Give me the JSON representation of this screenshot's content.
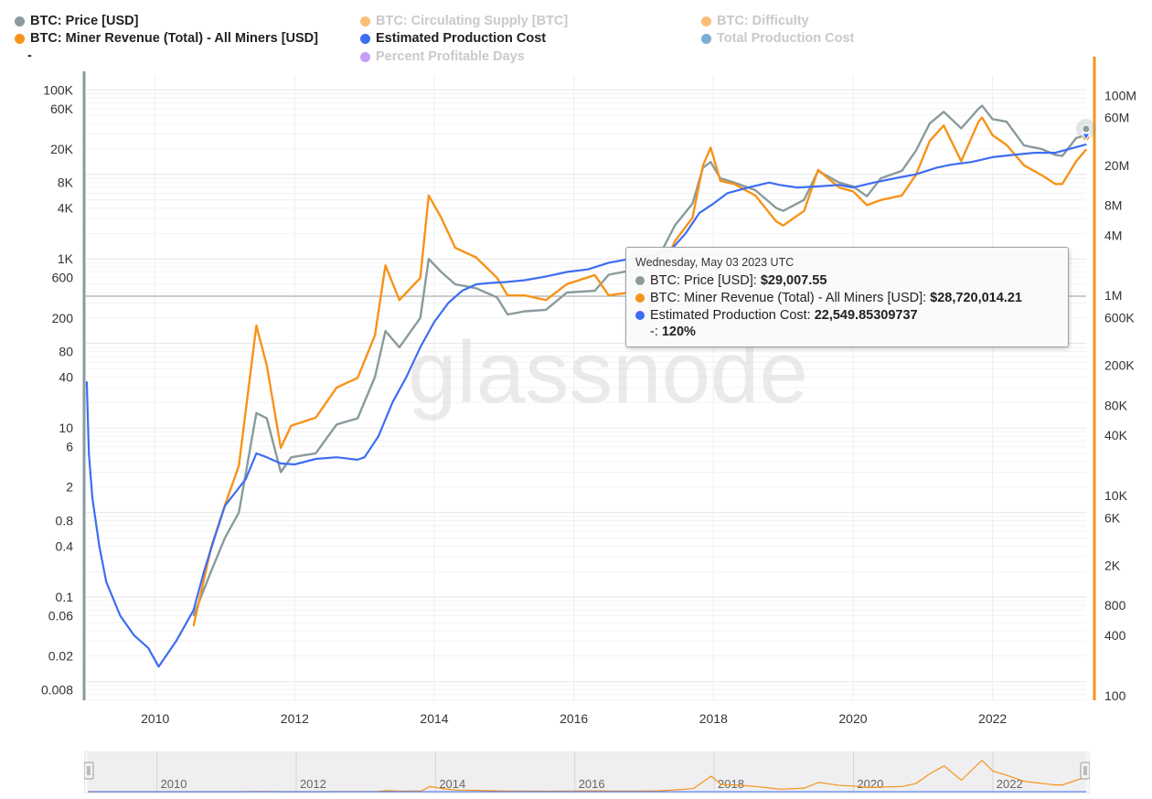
{
  "watermark": "glassnode",
  "legend": [
    {
      "label": "BTC: Price [USD]",
      "color": "#8a9a9d",
      "active": true
    },
    {
      "label": "BTC: Miner Revenue (Total) - All Miners [USD]",
      "color": "#f7931a",
      "active": true
    },
    {
      "label": "-",
      "color": "",
      "active": true
    },
    {
      "label": "BTC: Circulating Supply [BTC]",
      "color": "#f7931a",
      "active": false
    },
    {
      "label": "Estimated Production Cost",
      "color": "#3d6df2",
      "active": true
    },
    {
      "label": "Percent Profitable Days",
      "color": "#a259f0",
      "active": false
    },
    {
      "label": "BTC: Difficulty",
      "color": "#f7931a",
      "active": false
    },
    {
      "label": "Total Production Cost",
      "color": "#1f77b4",
      "active": false
    }
  ],
  "tooltip": {
    "date": "Wednesday, May 03 2023 UTC",
    "rows": [
      {
        "name": "BTC: Price [USD]:",
        "value": "$29,007.55",
        "color": "#8a9a9d"
      },
      {
        "name": "BTC: Miner Revenue (Total) - All Miners [USD]:",
        "value": "$28,720,014.21",
        "color": "#f7931a"
      },
      {
        "name": "Estimated Production Cost:",
        "value": "22,549.85309737",
        "color": "#3d6df2"
      },
      {
        "name": "-:",
        "value": "120%",
        "color": ""
      }
    ]
  },
  "chart_data": {
    "type": "line",
    "x_axis": {
      "type": "date",
      "range": [
        "2009-01-03",
        "2023-05-03"
      ],
      "ticks": [
        "2010",
        "2012",
        "2014",
        "2016",
        "2018",
        "2020",
        "2022"
      ]
    },
    "y_left": {
      "scale": "log",
      "range": [
        0.006,
        150000
      ],
      "ticks": [
        "100K",
        "60K",
        "20K",
        "8K",
        "4K",
        "1K",
        "600",
        "200",
        "80",
        "40",
        "10",
        "6",
        "2",
        "0.8",
        "0.4",
        "0.1",
        "0.06",
        "0.02",
        "0.008"
      ]
    },
    "y_right": {
      "scale": "log",
      "range": [
        90,
        160000000
      ],
      "ticks": [
        "100M",
        "60M",
        "20M",
        "8M",
        "4M",
        "1M",
        "600K",
        "200K",
        "80K",
        "40K",
        "10K",
        "6K",
        "2K",
        "800",
        "400",
        "100"
      ]
    },
    "navigator_ticks": [
      "2010",
      "2012",
      "2014",
      "2016",
      "2018",
      "2020",
      "2022"
    ],
    "grid": true,
    "series": [
      {
        "name": "BTC: Price [USD]",
        "axis": "left",
        "color": "#8a9a9d",
        "x": [
          2010.55,
          2010.8,
          2011.0,
          2011.2,
          2011.45,
          2011.6,
          2011.8,
          2011.95,
          2012.3,
          2012.6,
          2012.9,
          2013.15,
          2013.3,
          2013.5,
          2013.8,
          2013.92,
          2014.1,
          2014.3,
          2014.6,
          2014.9,
          2015.05,
          2015.3,
          2015.6,
          2015.9,
          2016.3,
          2016.5,
          2016.9,
          2017.2,
          2017.45,
          2017.7,
          2017.85,
          2017.96,
          2018.1,
          2018.3,
          2018.6,
          2018.9,
          2019.0,
          2019.3,
          2019.5,
          2019.8,
          2020.0,
          2020.2,
          2020.4,
          2020.7,
          2020.9,
          2021.1,
          2021.3,
          2021.55,
          2021.8,
          2021.85,
          2022.0,
          2022.2,
          2022.45,
          2022.7,
          2022.9,
          2023.0,
          2023.2,
          2023.34
        ],
        "y": [
          0.06,
          0.2,
          0.5,
          1.0,
          15,
          13,
          3,
          4.5,
          5,
          11,
          13,
          40,
          140,
          90,
          200,
          1000,
          700,
          500,
          450,
          350,
          220,
          240,
          250,
          400,
          420,
          650,
          750,
          1000,
          2500,
          4500,
          12000,
          14000,
          9000,
          8000,
          6500,
          4000,
          3700,
          5000,
          11000,
          8000,
          7200,
          5500,
          9000,
          11000,
          19000,
          40000,
          55000,
          35000,
          60000,
          65000,
          45000,
          42000,
          22000,
          20000,
          17000,
          16500,
          27000,
          29007.55
        ]
      },
      {
        "name": "BTC: Miner Revenue (Total) - All Miners [USD]",
        "axis": "right",
        "color": "#f7931a",
        "x": [
          2010.55,
          2010.8,
          2011.0,
          2011.2,
          2011.45,
          2011.6,
          2011.8,
          2011.95,
          2012.3,
          2012.6,
          2012.9,
          2013.15,
          2013.3,
          2013.5,
          2013.8,
          2013.92,
          2014.1,
          2014.3,
          2014.6,
          2014.9,
          2015.05,
          2015.3,
          2015.6,
          2015.9,
          2016.3,
          2016.5,
          2016.9,
          2017.2,
          2017.45,
          2017.7,
          2017.85,
          2017.96,
          2018.1,
          2018.3,
          2018.6,
          2018.9,
          2019.0,
          2019.3,
          2019.5,
          2019.8,
          2020.0,
          2020.2,
          2020.4,
          2020.7,
          2020.9,
          2021.1,
          2021.3,
          2021.55,
          2021.8,
          2021.85,
          2022.0,
          2022.2,
          2022.45,
          2022.7,
          2022.9,
          2023.0,
          2023.2,
          2023.34
        ],
        "y": [
          500,
          3000,
          8000,
          20000,
          500000,
          200000,
          30000,
          50000,
          60000,
          120000,
          150000,
          400000,
          2000000,
          900000,
          1500000,
          10000000,
          6000000,
          3000000,
          2400000,
          1500000,
          1000000,
          1000000,
          900000,
          1300000,
          1600000,
          1000000,
          1100000,
          1500000,
          3500000,
          6000000,
          20000000,
          30000000,
          14000000,
          13000000,
          10000000,
          5500000,
          5000000,
          7000000,
          18000000,
          12000000,
          11000000,
          8000000,
          9000000,
          10000000,
          16000000,
          35000000,
          50000000,
          22000000,
          55000000,
          60000000,
          40000000,
          32000000,
          20000000,
          16000000,
          13000000,
          13000000,
          22000000,
          28720014.21
        ]
      },
      {
        "name": "Estimated Production Cost",
        "axis": "left",
        "color": "#3d6df2",
        "x": [
          2009.02,
          2009.05,
          2009.1,
          2009.2,
          2009.3,
          2009.5,
          2009.7,
          2009.9,
          2010.05,
          2010.3,
          2010.55,
          2010.7,
          2010.85,
          2011.0,
          2011.3,
          2011.45,
          2011.6,
          2011.8,
          2012.0,
          2012.3,
          2012.6,
          2012.9,
          2013.0,
          2013.2,
          2013.4,
          2013.6,
          2013.8,
          2014.0,
          2014.2,
          2014.4,
          2014.6,
          2014.8,
          2015.0,
          2015.3,
          2015.6,
          2015.9,
          2016.2,
          2016.5,
          2016.8,
          2017.1,
          2017.4,
          2017.6,
          2017.8,
          2018.0,
          2018.2,
          2018.5,
          2018.8,
          2018.95,
          2019.2,
          2019.5,
          2019.8,
          2020.0,
          2020.3,
          2020.6,
          2020.9,
          2021.2,
          2021.4,
          2021.7,
          2022.0,
          2022.3,
          2022.6,
          2022.9,
          2023.1,
          2023.34
        ],
        "y": [
          35,
          5,
          1.5,
          0.4,
          0.15,
          0.06,
          0.035,
          0.025,
          0.015,
          0.03,
          0.07,
          0.2,
          0.5,
          1.2,
          2.5,
          5,
          4.5,
          3.8,
          3.7,
          4.3,
          4.5,
          4.2,
          4.5,
          8,
          20,
          40,
          90,
          180,
          300,
          420,
          500,
          520,
          530,
          560,
          620,
          700,
          750,
          900,
          1000,
          1100,
          1300,
          2000,
          3500,
          4500,
          6000,
          7000,
          8000,
          7500,
          7000,
          7200,
          7500,
          7000,
          8000,
          9000,
          10000,
          12000,
          13000,
          14000,
          16000,
          17000,
          18000,
          18000,
          20000,
          22549.85309737
        ]
      }
    ]
  }
}
